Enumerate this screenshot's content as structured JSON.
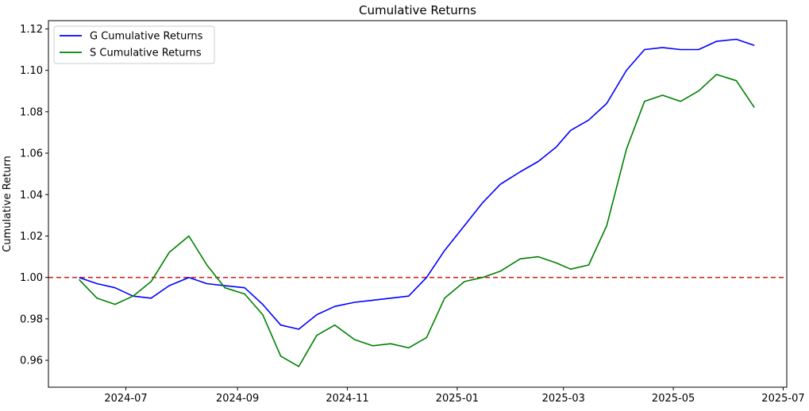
{
  "chart_data": {
    "type": "line",
    "title": "Cumulative Returns",
    "xlabel": "",
    "ylabel": "Cumulative Return",
    "x_ticks": [
      "2024-07",
      "2024-09",
      "2024-11",
      "2025-01",
      "2025-03",
      "2025-05",
      "2025-07"
    ],
    "y_ticks": [
      "0.96",
      "0.98",
      "1.00",
      "1.02",
      "1.04",
      "1.06",
      "1.08",
      "1.10",
      "1.12"
    ],
    "xlim": [
      "2024-05-19",
      "2025-07-03"
    ],
    "ylim": [
      0.947,
      1.124
    ],
    "grid": false,
    "legend": "top-left",
    "reference_line": {
      "y": 1.0,
      "color": "#d62728",
      "style": "dashed"
    },
    "x": [
      "2024-06-05",
      "2024-06-15",
      "2024-06-25",
      "2024-07-05",
      "2024-07-15",
      "2024-07-25",
      "2024-08-05",
      "2024-08-15",
      "2024-08-25",
      "2024-09-05",
      "2024-09-15",
      "2024-09-25",
      "2024-10-05",
      "2024-10-15",
      "2024-10-25",
      "2024-11-05",
      "2024-11-15",
      "2024-11-25",
      "2024-12-05",
      "2024-12-15",
      "2024-12-25",
      "2025-01-05",
      "2025-01-15",
      "2025-01-25",
      "2025-02-05",
      "2025-02-15",
      "2025-02-25",
      "2025-03-05",
      "2025-03-15",
      "2025-03-25",
      "2025-04-05",
      "2025-04-15",
      "2025-04-25",
      "2025-05-05",
      "2025-05-15",
      "2025-05-25",
      "2025-06-05",
      "2025-06-15"
    ],
    "series": [
      {
        "name": "G Cumulative Returns",
        "color": "#0000ff",
        "values": [
          1.0,
          0.997,
          0.995,
          0.991,
          0.99,
          0.996,
          1.0,
          0.997,
          0.996,
          0.995,
          0.987,
          0.977,
          0.975,
          0.982,
          0.986,
          0.988,
          0.989,
          0.99,
          0.991,
          1.0,
          1.013,
          1.025,
          1.036,
          1.045,
          1.051,
          1.056,
          1.063,
          1.071,
          1.076,
          1.084,
          1.1,
          1.11,
          1.111,
          1.11,
          1.11,
          1.114,
          1.115,
          1.112
        ]
      },
      {
        "name": "S Cumulative Returns",
        "color": "#008000",
        "values": [
          0.999,
          0.99,
          0.987,
          0.991,
          0.998,
          1.012,
          1.02,
          1.006,
          0.995,
          0.992,
          0.982,
          0.962,
          0.957,
          0.972,
          0.977,
          0.97,
          0.967,
          0.968,
          0.966,
          0.971,
          0.99,
          0.998,
          1.0,
          1.003,
          1.009,
          1.01,
          1.007,
          1.004,
          1.006,
          1.025,
          1.062,
          1.085,
          1.088,
          1.085,
          1.09,
          1.098,
          1.095,
          1.082
        ]
      }
    ]
  }
}
